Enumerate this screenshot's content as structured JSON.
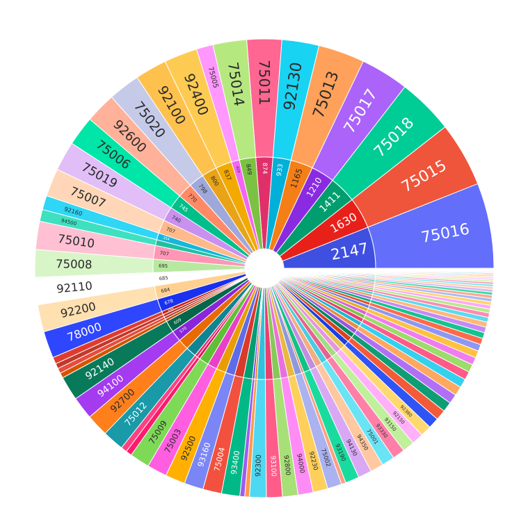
{
  "chart_data": {
    "type": "sunburst",
    "title": "",
    "segments": [
      {
        "outer_label": "75016",
        "inner_label": "2147",
        "value": 2147,
        "color": "#636EFA",
        "inner_color": "#3F4FE0"
      },
      {
        "outer_label": "75015",
        "inner_label": "1630",
        "value": 1630,
        "color": "#EF553B",
        "inner_color": "#E8201A"
      },
      {
        "outer_label": "75018",
        "inner_label": "1411",
        "value": 1411,
        "color": "#00CC96",
        "inner_color": "#009E6E"
      },
      {
        "outer_label": "75017",
        "inner_label": "1210",
        "value": 1210,
        "color": "#AB63FA",
        "inner_color": "#8A2BE2"
      },
      {
        "outer_label": "75013",
        "inner_label": "1165",
        "value": 1165,
        "color": "#FFA15A",
        "inner_color": "#F57F17"
      },
      {
        "outer_label": "92130",
        "inner_label": "933",
        "value": 933,
        "color": "#19D3F3",
        "inner_color": "#00B0D8"
      },
      {
        "outer_label": "75011",
        "inner_label": "874",
        "value": 874,
        "color": "#FF6692",
        "inner_color": "#E0306A"
      },
      {
        "outer_label": "75014",
        "inner_label": "849",
        "value": 849,
        "color": "#B6E880",
        "inner_color": "#7CC242"
      },
      {
        "outer_label": "75005",
        "inner_label": "419",
        "value": 419,
        "color": "#FF97FF",
        "inner_color": "#F266F2"
      },
      {
        "outer_label": "92400",
        "inner_label": "837",
        "value": 837,
        "color": "#FECB52",
        "inner_color": "#F2A900"
      },
      {
        "outer_label": "92100",
        "inner_label": "800",
        "value": 800,
        "color": "#FFC14D",
        "inner_color": "#E8A317"
      },
      {
        "outer_label": "75020",
        "inner_label": "798",
        "value": 798,
        "color": "#C5CAE9",
        "inner_color": "#9FA8DA"
      },
      {
        "outer_label": "92600",
        "inner_label": "770",
        "value": 770,
        "color": "#FFB199",
        "inner_color": "#FF8A65"
      },
      {
        "outer_label": "75006",
        "inner_label": "745",
        "value": 745,
        "color": "#00E6A8",
        "inner_color": "#00BF8A"
      },
      {
        "outer_label": "75019",
        "inner_label": "740",
        "value": 740,
        "color": "#E1BEF7",
        "inner_color": "#C990F0"
      },
      {
        "outer_label": "75007",
        "inner_label": "707",
        "value": 707,
        "color": "#FFD7B8",
        "inner_color": "#FFB98A"
      },
      {
        "outer_label": "92160",
        "inner_label": "354",
        "value": 354,
        "color": "#2FD6F5",
        "inner_color": "#14B8DA"
      },
      {
        "outer_label": "94500",
        "inner_label": "",
        "value": 300,
        "color": "#3FE0C0",
        "inner_color": "#1FC0A0"
      },
      {
        "outer_label": "75010",
        "inner_label": "707",
        "value": 707,
        "color": "#FFC0D4",
        "inner_color": "#FF96B4"
      },
      {
        "outer_label": "75008",
        "inner_label": "695",
        "value": 695,
        "color": "#D8F5C8",
        "inner_color": "#B8E8A0"
      },
      {
        "outer_label": "92110",
        "inner_label": "685",
        "value": 685,
        "color": "#FFFFFF",
        "inner_color": "#FFFFFF"
      },
      {
        "outer_label": "92200",
        "inner_label": "684",
        "value": 684,
        "color": "#FFE0B0",
        "inner_color": "#FFD090"
      },
      {
        "outer_label": "78000",
        "inner_label": "678",
        "value": 678,
        "color": "#2F46FF",
        "inner_color": "#1A30F0"
      },
      {
        "outer_label": "",
        "inner_label": "168",
        "value": 168,
        "color": "#E03B2E",
        "inner_color": "#D01F10"
      },
      {
        "outer_label": "",
        "inner_label": "",
        "value": 130,
        "color": "#C0392B",
        "inner_color": "#A93226"
      },
      {
        "outer_label": "",
        "inner_label": "",
        "value": 130,
        "color": "#E74C3C",
        "inner_color": "#C0392B"
      },
      {
        "outer_label": "",
        "inner_label": "",
        "value": 130,
        "color": "#D35400",
        "inner_color": "#BA4A00"
      },
      {
        "outer_label": "92140",
        "inner_label": "609",
        "value": 609,
        "color": "#087A5A",
        "inner_color": "#05664A"
      },
      {
        "outer_label": "94100",
        "inner_label": "570",
        "value": 570,
        "color": "#A43BF0",
        "inner_color": "#8A25D8"
      },
      {
        "outer_label": "92700",
        "inner_label": "",
        "value": 560,
        "color": "#FF7F1A",
        "inner_color": "#E86A00"
      },
      {
        "outer_label": "75012",
        "inner_label": "",
        "value": 540,
        "color": "#1A9AA8",
        "inner_color": "#108592"
      },
      {
        "outer_label": "",
        "inner_label": "",
        "value": 150,
        "color": "#FF4080",
        "inner_color": "#E82F6E"
      },
      {
        "outer_label": "",
        "inner_label": "",
        "value": 150,
        "color": "#FF1A6E",
        "inner_color": "#E00F5E"
      },
      {
        "outer_label": "75009",
        "inner_label": "",
        "value": 500,
        "color": "#7ED957",
        "inner_color": "#5EC035"
      },
      {
        "outer_label": "75003",
        "inner_label": "",
        "value": 500,
        "color": "#FF5EE0",
        "inner_color": "#E840C8"
      },
      {
        "outer_label": "92500",
        "inner_label": "",
        "value": 500,
        "color": "#FFB000",
        "inner_color": "#E89E00"
      },
      {
        "outer_label": "93160",
        "inner_label": "",
        "value": 480,
        "color": "#7A86F5",
        "inner_color": "#5E6CE8"
      },
      {
        "outer_label": "75004",
        "inner_label": "",
        "value": 470,
        "color": "#F2513F",
        "inner_color": "#D93A2A"
      },
      {
        "outer_label": "93400",
        "inner_label": "",
        "value": 460,
        "color": "#00B987",
        "inner_color": "#009E72"
      },
      {
        "outer_label": "",
        "inner_label": "",
        "value": 120,
        "color": "#9C5CF0",
        "inner_color": "#8244D8"
      },
      {
        "outer_label": "",
        "inner_label": "",
        "value": 120,
        "color": "#FF9A4A",
        "inner_color": "#E8822F"
      },
      {
        "outer_label": "92300",
        "inner_label": "",
        "value": 420,
        "color": "#4FD8F2",
        "inner_color": "#2FC0DC"
      },
      {
        "outer_label": "93100",
        "inner_label": "",
        "value": 400,
        "color": "#FF5C8A",
        "inner_color": "#E84070"
      },
      {
        "outer_label": "92800",
        "inner_label": "",
        "value": 390,
        "color": "#A8E078",
        "inner_color": "#88C858"
      },
      {
        "outer_label": "94000",
        "inner_label": "",
        "value": 380,
        "color": "#FF8CF5",
        "inner_color": "#E870DC"
      },
      {
        "outer_label": "92230",
        "inner_label": "",
        "value": 370,
        "color": "#FFCF5C",
        "inner_color": "#E8B840"
      },
      {
        "outer_label": "75002",
        "inner_label": "",
        "value": 360,
        "color": "#AAB2F0",
        "inner_color": "#8E98DC"
      },
      {
        "outer_label": "",
        "inner_label": "",
        "value": 110,
        "color": "#FF9F80",
        "inner_color": "#E88060"
      },
      {
        "outer_label": "93190",
        "inner_label": "",
        "value": 350,
        "color": "#1ADB9E",
        "inner_color": "#0FC286"
      },
      {
        "outer_label": "94130",
        "inner_label": "",
        "value": 340,
        "color": "#D9A8F5",
        "inner_color": "#C28CE0"
      },
      {
        "outer_label": "94350",
        "inner_label": "",
        "value": 330,
        "color": "#FFC8A0",
        "inner_color": "#F2AE80"
      },
      {
        "outer_label": "75001",
        "inner_label": "",
        "value": 320,
        "color": "#6AE3F5",
        "inner_color": "#4ACCE0"
      },
      {
        "outer_label": "93330",
        "inner_label": "",
        "value": 310,
        "color": "#FF7FA8",
        "inner_color": "#E86290"
      },
      {
        "outer_label": "93150",
        "inner_label": "",
        "value": 300,
        "color": "#C0F09C",
        "inner_color": "#A2DC7C"
      },
      {
        "outer_label": "92150",
        "inner_label": "",
        "value": 290,
        "color": "#FFB0F8",
        "inner_color": "#E894E2"
      },
      {
        "outer_label": "92380",
        "inner_label": "",
        "value": 280,
        "color": "#FFD970",
        "inner_color": "#E8C250"
      },
      {
        "outer_label": "",
        "inner_label": "",
        "value": 270,
        "color": "#2F54F5",
        "inner_color": "#1A40E0"
      },
      {
        "outer_label": "",
        "inner_label": "",
        "value": 260,
        "color": "#F25A3A",
        "inner_color": "#DC4020"
      },
      {
        "outer_label": "",
        "inner_label": "",
        "value": 250,
        "color": "#0F9E74",
        "inner_color": "#08865E"
      },
      {
        "outer_label": "",
        "inner_label": "",
        "value": 240,
        "color": "#B070F5",
        "inner_color": "#9656E0"
      },
      {
        "outer_label": "",
        "inner_label": "",
        "value": 230,
        "color": "#FFA860",
        "inner_color": "#E88E44"
      },
      {
        "outer_label": "",
        "inner_label": "",
        "value": 220,
        "color": "#34D0F0",
        "inner_color": "#18B8D8"
      },
      {
        "outer_label": "",
        "inner_label": "",
        "value": 210,
        "color": "#FF5A88",
        "inner_color": "#E83E6E"
      },
      {
        "outer_label": "",
        "inner_label": "",
        "value": 200,
        "color": "#9CDC6A",
        "inner_color": "#7EC44C"
      },
      {
        "outer_label": "",
        "inner_label": "",
        "value": 190,
        "color": "#F07CF0",
        "inner_color": "#D860D8"
      },
      {
        "outer_label": "",
        "inner_label": "",
        "value": 180,
        "color": "#FFC23E",
        "inner_color": "#E8AA22"
      },
      {
        "outer_label": "",
        "inner_label": "",
        "value": 170,
        "color": "#8E98F2",
        "inner_color": "#727EDC"
      },
      {
        "outer_label": "",
        "inner_label": "",
        "value": 160,
        "color": "#FF6A4A",
        "inner_color": "#E8502E"
      },
      {
        "outer_label": "",
        "inner_label": "",
        "value": 150,
        "color": "#14C490",
        "inner_color": "#08AA78"
      },
      {
        "outer_label": "",
        "inner_label": "",
        "value": 140,
        "color": "#C58AF5",
        "inner_color": "#AC70E0"
      },
      {
        "outer_label": "",
        "inner_label": "",
        "value": 130,
        "color": "#FFB87A",
        "inner_color": "#E89E5E"
      },
      {
        "outer_label": "",
        "inner_label": "",
        "value": 120,
        "color": "#5CDAF0",
        "inner_color": "#40C2D8"
      },
      {
        "outer_label": "",
        "inner_label": "",
        "value": 110,
        "color": "#FF8AB0",
        "inner_color": "#E87096"
      },
      {
        "outer_label": "",
        "inner_label": "",
        "value": 100,
        "color": "#B8E890",
        "inner_color": "#9CD072"
      },
      {
        "outer_label": "",
        "inner_label": "",
        "value": 95,
        "color": "#FFA8F8",
        "inner_color": "#E88EE0"
      },
      {
        "outer_label": "",
        "inner_label": "",
        "value": 90,
        "color": "#FFD470",
        "inner_color": "#E8BC54"
      },
      {
        "outer_label": "",
        "inner_label": "",
        "value": 85,
        "color": "#B0B8F5",
        "inner_color": "#949EE0"
      },
      {
        "outer_label": "",
        "inner_label": "",
        "value": 80,
        "color": "#FFA88A",
        "inner_color": "#E88E70"
      },
      {
        "outer_label": "",
        "inner_label": "",
        "value": 75,
        "color": "#40DBA8",
        "inner_color": "#26C290"
      },
      {
        "outer_label": "",
        "inner_label": "",
        "value": 70,
        "color": "#DCB4F5",
        "inner_color": "#C49AE0"
      },
      {
        "outer_label": "",
        "inner_label": "",
        "value": 65,
        "color": "#FFCEA8",
        "inner_color": "#E8B48E"
      },
      {
        "outer_label": "",
        "inner_label": "",
        "value": 60,
        "color": "#80E4F5",
        "inner_color": "#66CCE0"
      },
      {
        "outer_label": "",
        "inner_label": "",
        "value": 55,
        "color": "#FFA0C0",
        "inner_color": "#E888A8"
      },
      {
        "outer_label": "",
        "inner_label": "",
        "value": 50,
        "color": "#D0F2B0",
        "inner_color": "#B6DC96"
      },
      {
        "outer_label": "",
        "inner_label": "",
        "value": 45,
        "color": "#FFC4F8",
        "inner_color": "#E8AAE2"
      },
      {
        "outer_label": "",
        "inner_label": "",
        "value": 40,
        "color": "#FFE090",
        "inner_color": "#E8C876"
      },
      {
        "outer_label": "",
        "inner_label": "",
        "value": 36,
        "color": "#C8CCF5",
        "inner_color": "#AEB4E0"
      },
      {
        "outer_label": "",
        "inner_label": "",
        "value": 32,
        "color": "#FFC0AA",
        "inner_color": "#E8A890"
      },
      {
        "outer_label": "",
        "inner_label": "",
        "value": 28,
        "color": "#80E8C4",
        "inner_color": "#66D0AC"
      },
      {
        "outer_label": "",
        "inner_label": "",
        "value": 24,
        "color": "#E8CCF8",
        "inner_color": "#D0B2E2"
      },
      {
        "outer_label": "",
        "inner_label": "",
        "value": 20,
        "color": "#FFDDC4",
        "inner_color": "#E8C4AA"
      },
      {
        "outer_label": "",
        "inner_label": "",
        "value": 18,
        "color": "#A8EEF8",
        "inner_color": "#8ED8E2"
      },
      {
        "outer_label": "",
        "inner_label": "",
        "value": 16,
        "color": "#FFBCD2",
        "inner_color": "#E8A2BA"
      },
      {
        "outer_label": "",
        "inner_label": "",
        "value": 14,
        "color": "#DDF4C8",
        "inner_color": "#C4DEAE"
      },
      {
        "outer_label": "",
        "inner_label": "",
        "value": 12,
        "color": "#FFD4FA",
        "inner_color": "#E8BAE4"
      },
      {
        "outer_label": "",
        "inner_label": "",
        "value": 10,
        "color": "#FFE8B0",
        "inner_color": "#E8D096"
      }
    ]
  }
}
